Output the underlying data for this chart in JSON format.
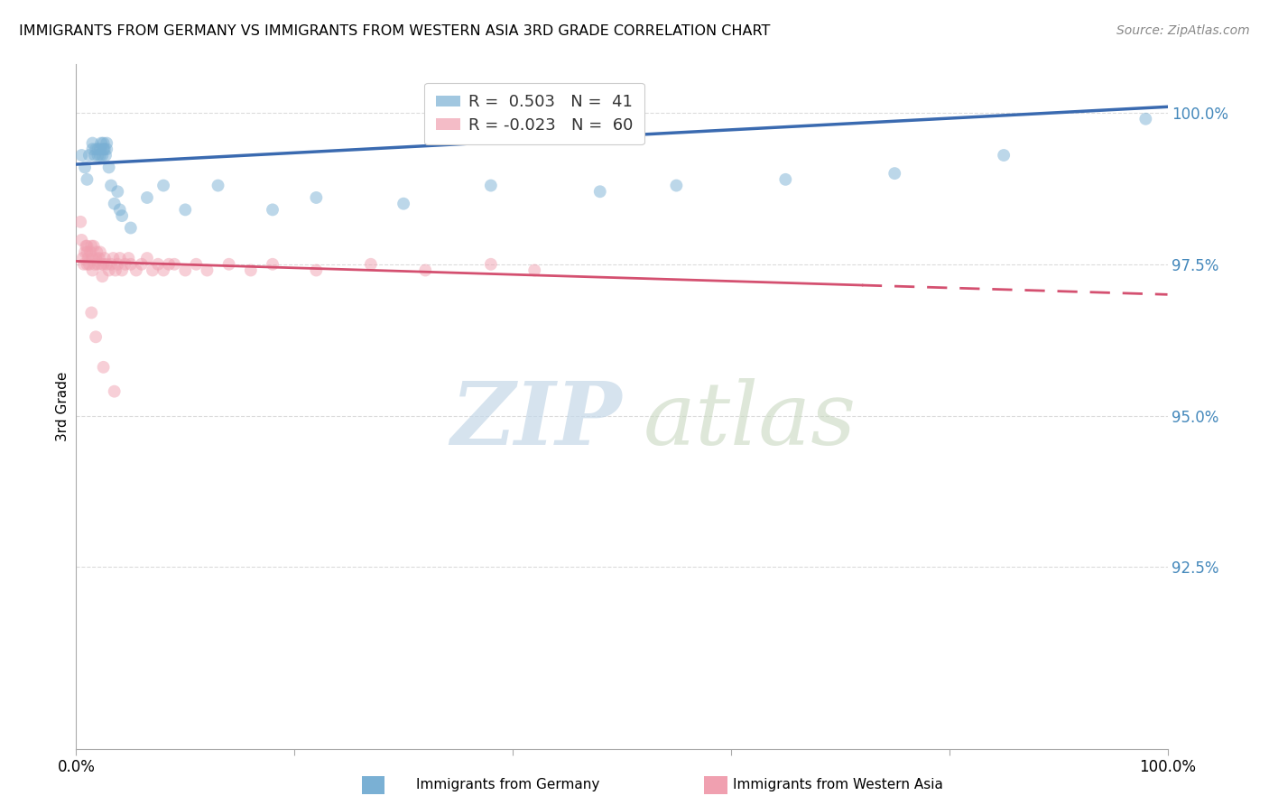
{
  "title": "IMMIGRANTS FROM GERMANY VS IMMIGRANTS FROM WESTERN ASIA 3RD GRADE CORRELATION CHART",
  "source": "Source: ZipAtlas.com",
  "ylabel": "3rd Grade",
  "xlim": [
    0.0,
    1.0
  ],
  "ylim": [
    0.895,
    1.008
  ],
  "yticks": [
    0.925,
    0.95,
    0.975,
    1.0
  ],
  "ytick_labels": [
    "92.5%",
    "95.0%",
    "97.5%",
    "100.0%"
  ],
  "legend_blue_r": "R =  0.503",
  "legend_blue_n": "N =  41",
  "legend_pink_r": "R = -0.023",
  "legend_pink_n": "N =  60",
  "blue_scatter_x": [
    0.005,
    0.008,
    0.01,
    0.012,
    0.015,
    0.015,
    0.017,
    0.018,
    0.02,
    0.02,
    0.022,
    0.022,
    0.023,
    0.024,
    0.025,
    0.025,
    0.026,
    0.027,
    0.028,
    0.028,
    0.03,
    0.032,
    0.035,
    0.038,
    0.04,
    0.042,
    0.05,
    0.065,
    0.08,
    0.1,
    0.13,
    0.18,
    0.22,
    0.3,
    0.38,
    0.48,
    0.55,
    0.65,
    0.75,
    0.85,
    0.98
  ],
  "blue_scatter_y": [
    0.993,
    0.991,
    0.989,
    0.993,
    0.994,
    0.995,
    0.993,
    0.994,
    0.993,
    0.994,
    0.993,
    0.994,
    0.995,
    0.993,
    0.994,
    0.995,
    0.994,
    0.993,
    0.994,
    0.995,
    0.991,
    0.988,
    0.985,
    0.987,
    0.984,
    0.983,
    0.981,
    0.986,
    0.988,
    0.984,
    0.988,
    0.984,
    0.986,
    0.985,
    0.988,
    0.987,
    0.988,
    0.989,
    0.99,
    0.993,
    0.999
  ],
  "pink_scatter_x": [
    0.004,
    0.005,
    0.006,
    0.007,
    0.008,
    0.009,
    0.01,
    0.01,
    0.01,
    0.011,
    0.012,
    0.013,
    0.014,
    0.015,
    0.015,
    0.016,
    0.017,
    0.018,
    0.019,
    0.02,
    0.021,
    0.022,
    0.023,
    0.024,
    0.025,
    0.026,
    0.028,
    0.03,
    0.032,
    0.034,
    0.036,
    0.038,
    0.04,
    0.042,
    0.045,
    0.048,
    0.05,
    0.055,
    0.06,
    0.065,
    0.07,
    0.075,
    0.08,
    0.085,
    0.09,
    0.1,
    0.11,
    0.12,
    0.14,
    0.16,
    0.18,
    0.22,
    0.27,
    0.32,
    0.38,
    0.42,
    0.014,
    0.018,
    0.025,
    0.035
  ],
  "pink_scatter_y": [
    0.982,
    0.979,
    0.976,
    0.975,
    0.977,
    0.978,
    0.975,
    0.977,
    0.978,
    0.976,
    0.975,
    0.977,
    0.978,
    0.974,
    0.976,
    0.978,
    0.975,
    0.976,
    0.977,
    0.975,
    0.976,
    0.977,
    0.975,
    0.973,
    0.975,
    0.976,
    0.975,
    0.974,
    0.975,
    0.976,
    0.974,
    0.975,
    0.976,
    0.974,
    0.975,
    0.976,
    0.975,
    0.974,
    0.975,
    0.976,
    0.974,
    0.975,
    0.974,
    0.975,
    0.975,
    0.974,
    0.975,
    0.974,
    0.975,
    0.974,
    0.975,
    0.974,
    0.975,
    0.974,
    0.975,
    0.974,
    0.967,
    0.963,
    0.958,
    0.954
  ],
  "blue_color": "#7ab0d4",
  "pink_color": "#f0a0b0",
  "blue_line_color": "#3a6ab0",
  "pink_line_color": "#d45070",
  "background_color": "#ffffff",
  "marker_size": 100
}
